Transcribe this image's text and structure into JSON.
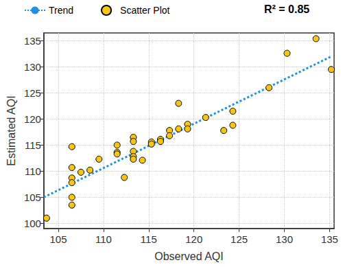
{
  "chart_data": {
    "type": "scatter",
    "x_label": "Observed AQI",
    "y_label": "Estimated AQI",
    "annotation": "R² = 0.85",
    "xlim": [
      103.4,
      135.5
    ],
    "ylim": [
      99,
      136.5
    ],
    "xticks": [
      105,
      110,
      115,
      120,
      125,
      130,
      135
    ],
    "yticks": [
      100,
      105,
      110,
      115,
      120,
      125,
      130,
      135
    ],
    "grid": true,
    "legend": "top",
    "series": [
      {
        "name": "Trend",
        "type": "line",
        "line_style": "dotted",
        "color": "#1f8fe0",
        "x": [
          103.4,
          135.2
        ],
        "values": [
          105,
          132
        ]
      },
      {
        "name": "Scatter Plot",
        "type": "scatter",
        "marker": "circle",
        "color": "#f5c518",
        "x": [
          103.7,
          106.5,
          106.5,
          106.5,
          106.5,
          106.5,
          106.5,
          107.5,
          108.5,
          109.5,
          111.5,
          111.5,
          111.5,
          112.3,
          113.3,
          113.3,
          113.3,
          113.3,
          113.3,
          114.3,
          115.3,
          115.3,
          116.3,
          116.3,
          117.3,
          117.3,
          118.3,
          118.3,
          119.3,
          119.3,
          121.3,
          123.3,
          124.3,
          124.3,
          128.3,
          130.3,
          133.5,
          135.2
        ],
        "values": [
          101,
          114.7,
          110.7,
          108.7,
          107.8,
          105,
          103.5,
          109.8,
          110.2,
          112.3,
          115,
          113.6,
          113.3,
          108.8,
          116.5,
          115.7,
          113.8,
          112.8,
          112.3,
          112.1,
          115.6,
          115.2,
          116.1,
          115.7,
          117.8,
          116.8,
          123,
          118.1,
          119,
          118.1,
          120.3,
          117.8,
          121.5,
          118.8,
          126,
          132.6,
          135.4,
          129.5
        ]
      }
    ]
  }
}
